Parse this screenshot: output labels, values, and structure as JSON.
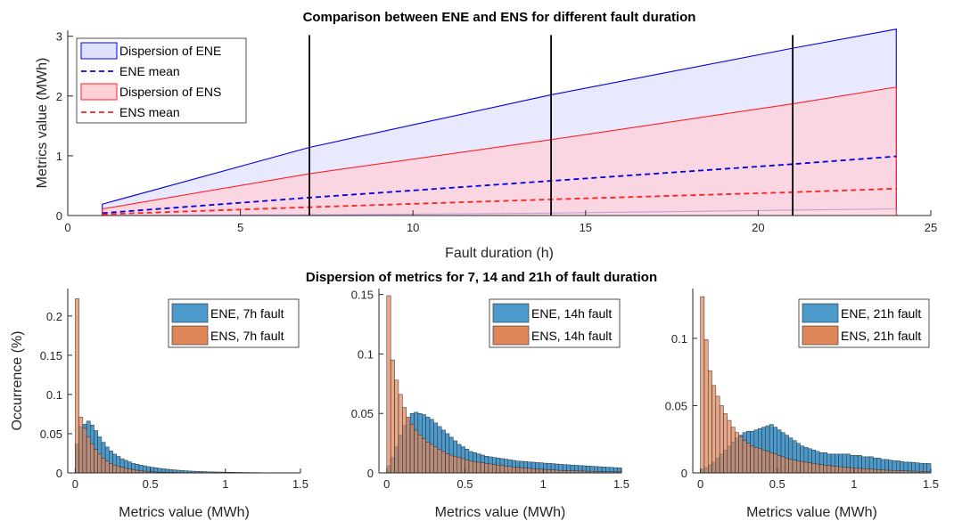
{
  "chart_data": [
    {
      "type": "area",
      "title": "Comparison between ENE and ENS for different fault duration",
      "xlabel": "Fault duration (h)",
      "ylabel": "Metrics value (MWh)",
      "xlim": [
        0,
        25
      ],
      "ylim": [
        0,
        3.1
      ],
      "xticks": [
        0,
        5,
        10,
        15,
        20,
        25
      ],
      "yticks": [
        0,
        1,
        2,
        3
      ],
      "vlines": [
        7,
        14,
        21
      ],
      "legend_position": "top-left",
      "grid": false,
      "series": [
        {
          "name": "Dispersion of ENE",
          "kind": "band",
          "color": "#0000e0",
          "fill": "#e0e0ff",
          "x": [
            1,
            7,
            14,
            21,
            24
          ],
          "lower": [
            0.0,
            0.01,
            0.04,
            0.09,
            0.11
          ],
          "upper": [
            0.19,
            1.14,
            2.02,
            2.8,
            3.12
          ]
        },
        {
          "name": "ENE mean",
          "kind": "dashed",
          "color": "#0000e0",
          "x": [
            1,
            7,
            14,
            21,
            24
          ],
          "values": [
            0.04,
            0.3,
            0.58,
            0.86,
            0.99
          ]
        },
        {
          "name": "Dispersion of ENS",
          "kind": "band",
          "color": "#ff2020",
          "fill": "#ffd0d8",
          "x": [
            1,
            7,
            14,
            21,
            24
          ],
          "lower": [
            0.0,
            0.0,
            0.0,
            0.0,
            0.0
          ],
          "upper": [
            0.11,
            0.7,
            1.27,
            1.87,
            2.15
          ]
        },
        {
          "name": "ENS mean",
          "kind": "dashed",
          "color": "#ff2020",
          "x": [
            1,
            7,
            14,
            21,
            24
          ],
          "values": [
            0.02,
            0.14,
            0.27,
            0.39,
            0.45
          ]
        }
      ]
    },
    {
      "type": "bar",
      "subtitle": "Dispersion of metrics for 7, 14 and 21h of fault duration",
      "xlabel": "Metrics value (MWh)",
      "ylabel": "Occurrence (%)",
      "xlim": [
        -0.05,
        1.5
      ],
      "ylim": [
        0,
        0.235
      ],
      "xticks": [
        0,
        0.5,
        1,
        1.5
      ],
      "yticks": [
        0,
        0.05,
        0.1,
        0.15,
        0.2
      ],
      "bin_width": 0.025,
      "series": [
        {
          "name": "ENE, 7h fault",
          "color": "#4c99cc",
          "values": [
            0.037,
            0.059,
            0.062,
            0.066,
            0.061,
            0.054,
            0.046,
            0.039,
            0.033,
            0.028,
            0.024,
            0.021,
            0.018,
            0.016,
            0.014,
            0.012,
            0.011,
            0.01,
            0.009,
            0.008,
            0.0072,
            0.0065,
            0.0058,
            0.0052,
            0.0047,
            0.0042,
            0.0038,
            0.0034,
            0.003,
            0.0027,
            0.0024,
            0.0022,
            0.002,
            0.0018,
            0.0016,
            0.0014,
            0.0013,
            0.0012,
            0.0011,
            0.001,
            0.0009,
            0.0008,
            0.0007,
            0.0006,
            0.0006,
            0.0005,
            0.0005,
            0.0004,
            0.0004,
            0.0003,
            0.0003,
            0.0003,
            0.0002,
            0.0002,
            0.0002,
            0.0002,
            0.0001
          ]
        },
        {
          "name": "ENS, 7h fault",
          "color": "#e0875a",
          "values": [
            0.222,
            0.071,
            0.057,
            0.046,
            0.037,
            0.03,
            0.024,
            0.019,
            0.015,
            0.012,
            0.01,
            0.0085,
            0.007,
            0.0058,
            0.0048,
            0.004,
            0.0033,
            0.0027,
            0.0022,
            0.0018,
            0.0015,
            0.0012,
            0.001,
            0.0008,
            0.0007,
            0.0006,
            0.0005,
            0.0004,
            0.0003,
            0.0003,
            0.0002,
            0.0002,
            0.0002,
            0.0001
          ]
        }
      ]
    },
    {
      "type": "bar",
      "xlabel": "Metrics value (MWh)",
      "xlim": [
        -0.05,
        1.5
      ],
      "ylim": [
        0,
        0.155
      ],
      "xticks": [
        0,
        0.5,
        1,
        1.5
      ],
      "yticks": [
        0,
        0.05,
        0.1,
        0.15
      ],
      "bin_width": 0.025,
      "series": [
        {
          "name": "ENE, 14h fault",
          "color": "#4c99cc",
          "values": [
            0.006,
            0.013,
            0.022,
            0.032,
            0.04,
            0.046,
            0.05,
            0.051,
            0.05,
            0.049,
            0.047,
            0.045,
            0.042,
            0.039,
            0.036,
            0.033,
            0.03,
            0.027,
            0.024,
            0.022,
            0.02,
            0.018,
            0.017,
            0.016,
            0.015,
            0.014,
            0.0135,
            0.013,
            0.0125,
            0.012,
            0.0115,
            0.011,
            0.0105,
            0.01,
            0.0098,
            0.0095,
            0.0092,
            0.009,
            0.0087,
            0.0085,
            0.0082,
            0.008,
            0.0078,
            0.0075,
            0.0072,
            0.007,
            0.0068,
            0.0066,
            0.0064,
            0.0062,
            0.006,
            0.0058,
            0.0056,
            0.0054,
            0.0052,
            0.005,
            0.0048,
            0.0046,
            0.0044,
            0.0043
          ]
        },
        {
          "name": "ENS, 14h fault",
          "color": "#e0875a",
          "values": [
            0.149,
            0.095,
            0.078,
            0.066,
            0.055,
            0.047,
            0.041,
            0.036,
            0.032,
            0.029,
            0.026,
            0.024,
            0.022,
            0.02,
            0.018,
            0.016,
            0.015,
            0.014,
            0.013,
            0.012,
            0.011,
            0.01,
            0.0095,
            0.009,
            0.0085,
            0.008,
            0.0075,
            0.007,
            0.0066,
            0.0062,
            0.0058,
            0.0054,
            0.005,
            0.0047,
            0.0044,
            0.0041,
            0.0038,
            0.0035,
            0.0033,
            0.0031,
            0.0029,
            0.0027,
            0.0025,
            0.0023,
            0.0021,
            0.002,
            0.0019,
            0.0018,
            0.0017,
            0.0016,
            0.0015,
            0.0014,
            0.0013,
            0.0012,
            0.0011,
            0.001,
            0.001,
            0.0009,
            0.0009,
            0.0008
          ]
        }
      ]
    },
    {
      "type": "bar",
      "xlabel": "Metrics value (MWh)",
      "xlim": [
        -0.05,
        1.5
      ],
      "ylim": [
        0,
        0.137
      ],
      "xticks": [
        0,
        0.5,
        1,
        1.5
      ],
      "yticks": [
        0,
        0.05,
        0.1
      ],
      "bin_width": 0.025,
      "series": [
        {
          "name": "ENE, 21h fault",
          "color": "#4c99cc",
          "values": [
            0.003,
            0.004,
            0.006,
            0.008,
            0.011,
            0.014,
            0.017,
            0.02,
            0.023,
            0.026,
            0.028,
            0.03,
            0.031,
            0.031,
            0.032,
            0.033,
            0.034,
            0.035,
            0.036,
            0.034,
            0.032,
            0.03,
            0.028,
            0.026,
            0.024,
            0.022,
            0.02,
            0.019,
            0.018,
            0.017,
            0.016,
            0.015,
            0.015,
            0.014,
            0.014,
            0.014,
            0.014,
            0.014,
            0.014,
            0.013,
            0.013,
            0.013,
            0.012,
            0.012,
            0.012,
            0.011,
            0.011,
            0.01,
            0.01,
            0.0095,
            0.009,
            0.009,
            0.0085,
            0.008,
            0.008,
            0.0078,
            0.0075,
            0.0072,
            0.007,
            0.007
          ]
        },
        {
          "name": "ENS, 21h fault",
          "color": "#e0875a",
          "values": [
            0.131,
            0.099,
            0.076,
            0.065,
            0.057,
            0.05,
            0.044,
            0.039,
            0.034,
            0.03,
            0.027,
            0.024,
            0.022,
            0.02,
            0.019,
            0.018,
            0.017,
            0.016,
            0.015,
            0.014,
            0.013,
            0.012,
            0.011,
            0.01,
            0.0095,
            0.009,
            0.0085,
            0.008,
            0.0075,
            0.007,
            0.0066,
            0.0062,
            0.0058,
            0.0055,
            0.0052,
            0.0049,
            0.0046,
            0.0043,
            0.004,
            0.0038,
            0.0036,
            0.0034,
            0.0032,
            0.003,
            0.0028,
            0.0026,
            0.0024,
            0.0022,
            0.002,
            0.0019,
            0.0018,
            0.0017,
            0.0016,
            0.0015,
            0.0014,
            0.0013,
            0.0012,
            0.0011,
            0.001,
            0.001
          ]
        }
      ]
    }
  ]
}
